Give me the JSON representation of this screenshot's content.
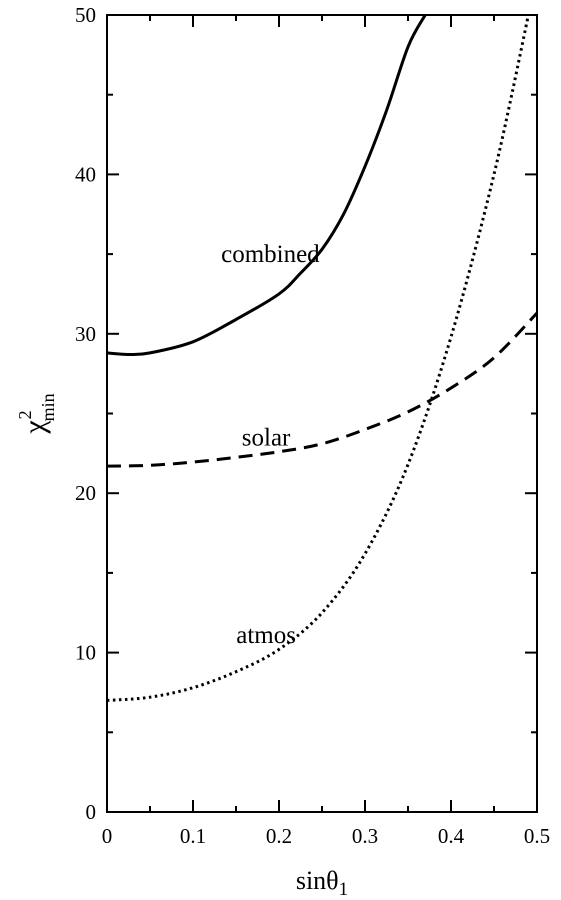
{
  "chart_data": {
    "type": "line",
    "title": "",
    "xlabel": "sinθ",
    "xlabel_sub": "1",
    "ylabel": "χ",
    "ylabel_sup": "2",
    "ylabel_sub": "min",
    "xlim": [
      0,
      0.5
    ],
    "ylim": [
      0,
      50
    ],
    "x_ticks": [
      0,
      0.1,
      0.2,
      0.3,
      0.4,
      0.5
    ],
    "x_tick_labels": [
      "0",
      "0.1",
      "0.2",
      "0.3",
      "0.4",
      "0.5"
    ],
    "y_ticks": [
      0,
      10,
      20,
      30,
      40,
      50
    ],
    "y_tick_labels": [
      "0",
      "10",
      "20",
      "30",
      "40",
      "50"
    ],
    "grid": false,
    "series": [
      {
        "name": "combined",
        "style": "solid",
        "x": [
          0.0,
          0.025,
          0.05,
          0.1,
          0.15,
          0.2,
          0.225,
          0.25,
          0.275,
          0.3,
          0.325,
          0.35,
          0.37
        ],
        "y": [
          28.8,
          28.7,
          28.8,
          29.5,
          30.9,
          32.5,
          33.8,
          35.3,
          37.5,
          40.5,
          44.0,
          48.0,
          50.0
        ]
      },
      {
        "name": "solar",
        "style": "dashed",
        "x": [
          0.0,
          0.05,
          0.1,
          0.15,
          0.2,
          0.25,
          0.3,
          0.35,
          0.4,
          0.45,
          0.5
        ],
        "y": [
          21.7,
          21.75,
          21.95,
          22.25,
          22.6,
          23.1,
          24.0,
          25.1,
          26.6,
          28.5,
          31.3
        ]
      },
      {
        "name": "atmos",
        "style": "dotted",
        "x": [
          0.0,
          0.05,
          0.1,
          0.15,
          0.2,
          0.25,
          0.3,
          0.35,
          0.4,
          0.45,
          0.49
        ],
        "y": [
          7.0,
          7.2,
          7.8,
          8.8,
          10.2,
          12.5,
          16.2,
          21.8,
          29.8,
          40.0,
          50.0
        ]
      }
    ],
    "annotations": [
      {
        "text": "combined",
        "x": 0.19,
        "y": 34.5
      },
      {
        "text": "solar",
        "x": 0.185,
        "y": 23.0
      },
      {
        "text": "atmos",
        "x": 0.185,
        "y": 10.6
      }
    ]
  }
}
